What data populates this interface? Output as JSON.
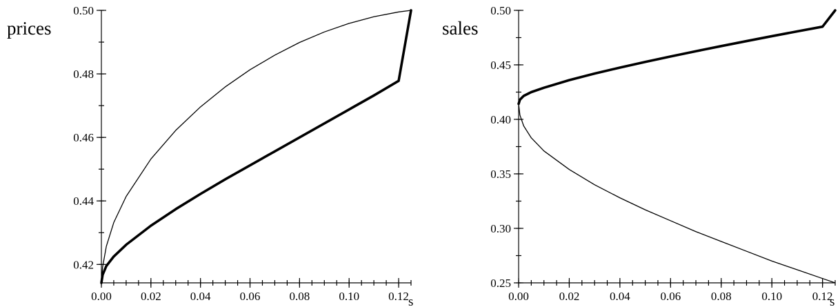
{
  "chart_data": [
    {
      "type": "line",
      "ylabel": "prices",
      "xlabel": "s",
      "xlim": [
        0,
        0.125
      ],
      "ylim": [
        0.4142,
        0.5
      ],
      "x_ticks": [
        "0.00",
        "0.02",
        "0.04",
        "0.06",
        "0.08",
        "0.10",
        "0.12"
      ],
      "y_ticks": [
        "0.42",
        "0.44",
        "0.46",
        "0.48",
        "0.50"
      ],
      "grid": false,
      "series": [
        {
          "style": "thin",
          "x": [
            0,
            0.0005,
            0.002,
            0.005,
            0.01,
            0.02,
            0.03,
            0.04,
            0.05,
            0.06,
            0.07,
            0.08,
            0.09,
            0.1,
            0.11,
            0.12,
            0.125
          ],
          "y": [
            0.4142,
            0.4192,
            0.4257,
            0.4332,
            0.4414,
            0.4532,
            0.4622,
            0.4696,
            0.4759,
            0.4813,
            0.4859,
            0.4899,
            0.4932,
            0.4959,
            0.498,
            0.4995,
            0.5
          ]
        },
        {
          "style": "thick",
          "x": [
            0,
            0.0005,
            0.002,
            0.005,
            0.01,
            0.02,
            0.03,
            0.04,
            0.05,
            0.06,
            0.07,
            0.08,
            0.09,
            0.1,
            0.11,
            0.12,
            0.125
          ],
          "y": [
            0.4142,
            0.4167,
            0.4195,
            0.4225,
            0.4262,
            0.4322,
            0.4374,
            0.4422,
            0.4468,
            0.4512,
            0.4556,
            0.46,
            0.4644,
            0.4688,
            0.4732,
            0.4778,
            0.5
          ]
        }
      ]
    },
    {
      "type": "line",
      "ylabel": "sales",
      "xlabel": "s",
      "xlim": [
        0,
        0.125
      ],
      "ylim": [
        0.25,
        0.5
      ],
      "x_ticks": [
        "0.00",
        "0.02",
        "0.04",
        "0.06",
        "0.08",
        "0.10",
        "0.12"
      ],
      "y_ticks": [
        "0.25",
        "0.30",
        "0.35",
        "0.40",
        "0.45",
        "0.50"
      ],
      "grid": false,
      "series": [
        {
          "style": "thick",
          "x": [
            0,
            0.0005,
            0.002,
            0.005,
            0.01,
            0.02,
            0.03,
            0.04,
            0.05,
            0.06,
            0.07,
            0.08,
            0.09,
            0.1,
            0.11,
            0.12,
            0.125
          ],
          "y": [
            0.4142,
            0.418,
            0.4215,
            0.425,
            0.429,
            0.436,
            0.442,
            0.4475,
            0.4527,
            0.4577,
            0.4625,
            0.4672,
            0.4718,
            0.4763,
            0.4807,
            0.485,
            0.5
          ]
        },
        {
          "style": "thin",
          "x": [
            0,
            0.0005,
            0.002,
            0.005,
            0.01,
            0.02,
            0.03,
            0.04,
            0.05,
            0.06,
            0.07,
            0.08,
            0.09,
            0.1,
            0.11,
            0.12,
            0.125
          ],
          "y": [
            0.4142,
            0.404,
            0.394,
            0.383,
            0.371,
            0.354,
            0.34,
            0.328,
            0.317,
            0.307,
            0.297,
            0.288,
            0.279,
            0.27,
            0.262,
            0.254,
            0.25
          ]
        }
      ]
    }
  ]
}
